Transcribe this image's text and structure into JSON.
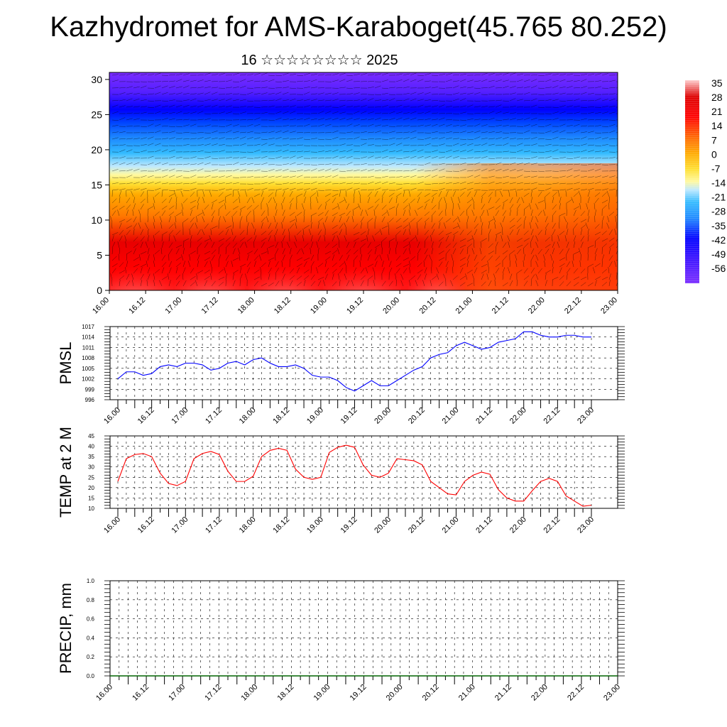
{
  "page": {
    "title": "Kazhydromet for AMS-Karaboget(45.765 80.252)",
    "subtitle": "16 ☆☆☆☆☆☆☆☆ 2025"
  },
  "chart_data": [
    {
      "type": "heatmap",
      "name": "cross-section",
      "description_note": "",
      "x_tick_labels": [
        "16.00",
        "16.12",
        "17.00",
        "17.12",
        "18.00",
        "18.12",
        "19.00",
        "19.12",
        "20.00",
        "20.12",
        "21.00",
        "21.12",
        "22.00",
        "22.12",
        "23.00"
      ],
      "y_ticks": [
        0,
        5,
        10,
        15,
        20,
        25,
        30
      ],
      "ylim": [
        0,
        31
      ],
      "colorbar_labels": [
        "35",
        "28",
        "21",
        "14",
        "7",
        "0",
        "-7",
        "-14",
        "-21",
        "-28",
        "-35",
        "-42",
        "-49",
        "-56"
      ],
      "colorbar_range": [
        -63,
        42
      ],
      "colors": {
        "hot": "#ff0000",
        "warm": "#ffa500",
        "yellow": "#ffff66",
        "cyan": "#33bbff",
        "blue": "#0000ff",
        "violet": "#7a2cff"
      }
    },
    {
      "type": "line",
      "ylabel": "PMSL",
      "color": "#0000ff",
      "y_ticks": [
        996,
        999,
        1002,
        1005,
        1008,
        1011,
        1014,
        1017
      ],
      "ylim": [
        996,
        1017
      ],
      "x_tick_labels": [
        "16.00",
        "16.12",
        "17.00",
        "17.12",
        "18.00",
        "18.12",
        "19.00",
        "19.12",
        "20.00",
        "20.12",
        "21.00",
        "21.12",
        "22.00",
        "22.12",
        "23.00"
      ],
      "x": [
        0,
        3,
        6,
        9,
        12,
        15,
        18,
        21,
        24,
        27,
        30,
        33,
        36,
        39,
        42,
        45,
        48,
        51,
        54,
        57,
        60,
        63,
        66,
        69,
        72,
        75,
        78,
        81,
        84,
        87,
        90,
        93,
        96,
        99,
        102,
        105,
        108,
        111,
        114,
        117,
        120,
        123,
        126,
        129,
        132,
        135,
        138,
        141,
        144,
        147,
        150,
        153,
        156,
        159,
        162,
        165,
        168
      ],
      "values": [
        1002,
        1004,
        1004,
        1003,
        1003.5,
        1005.5,
        1006,
        1005.5,
        1006.5,
        1006.5,
        1006,
        1004.5,
        1005,
        1006.5,
        1007,
        1006,
        1007.5,
        1008,
        1006.5,
        1005.5,
        1005.5,
        1006,
        1005,
        1003,
        1002.5,
        1002.5,
        1001.5,
        999.5,
        998.5,
        1000,
        1001.5,
        1000,
        1000,
        1001.5,
        1003,
        1004.5,
        1005.5,
        1008,
        1009,
        1009.5,
        1011.5,
        1012.5,
        1011.5,
        1010.5,
        1011,
        1012.5,
        1013,
        1013.5,
        1015.5,
        1015.5,
        1014.5,
        1014,
        1014,
        1014.5,
        1014.5,
        1014,
        1014
      ]
    },
    {
      "type": "line",
      "ylabel": "TEMP at 2 M",
      "color": "#ff0000",
      "y_ticks": [
        10,
        15,
        20,
        25,
        30,
        35,
        40,
        45
      ],
      "ylim": [
        10,
        45
      ],
      "x_tick_labels": [
        "16.00",
        "16.12",
        "17.00",
        "17.12",
        "18.00",
        "18.12",
        "19.00",
        "19.12",
        "20.00",
        "20.12",
        "21.00",
        "21.12",
        "22.00",
        "22.12",
        "23.00"
      ],
      "x": [
        0,
        3,
        6,
        9,
        12,
        15,
        18,
        21,
        24,
        27,
        30,
        33,
        36,
        39,
        42,
        45,
        48,
        51,
        54,
        57,
        60,
        63,
        66,
        69,
        72,
        75,
        78,
        81,
        84,
        87,
        90,
        93,
        96,
        99,
        102,
        105,
        108,
        111,
        114,
        117,
        120,
        123,
        126,
        129,
        132,
        135,
        138,
        141,
        144,
        147,
        150,
        153,
        156,
        159,
        162,
        165,
        168
      ],
      "values": [
        23,
        34,
        36,
        36.5,
        35,
        27,
        22,
        21,
        23,
        34,
        36.5,
        37.5,
        36,
        28,
        23,
        23,
        25.5,
        35,
        38,
        39,
        38,
        29,
        25,
        24,
        25,
        37,
        39.5,
        40.5,
        39.5,
        31,
        26,
        25,
        27,
        34,
        33.5,
        33,
        31,
        23,
        20,
        17,
        16.5,
        23,
        26,
        27.5,
        26.5,
        19,
        15,
        13.5,
        13.5,
        18.5,
        23,
        24.5,
        23,
        16,
        13.5,
        11,
        11.5
      ]
    },
    {
      "type": "bar",
      "ylabel": "PRECIP, mm",
      "color": "#006400",
      "y_ticks": [
        "0.0",
        "0.2",
        "0.4",
        "0.6",
        "0.8",
        "1.0"
      ],
      "ylim": [
        0,
        1
      ],
      "x_tick_labels": [
        "16.00",
        "16.12",
        "17.00",
        "17.12",
        "18.00",
        "18.12",
        "19.00",
        "19.12",
        "20.00",
        "20.12",
        "21.00",
        "21.12",
        "22.00",
        "22.12",
        "23.00"
      ],
      "values": [
        0,
        0,
        0,
        0,
        0,
        0,
        0,
        0,
        0,
        0,
        0,
        0,
        0,
        0,
        0,
        0,
        0,
        0,
        0,
        0,
        0,
        0,
        0,
        0,
        0,
        0,
        0,
        0,
        0,
        0,
        0,
        0,
        0,
        0,
        0,
        0,
        0,
        0,
        0,
        0,
        0,
        0,
        0,
        0,
        0,
        0,
        0,
        0,
        0,
        0,
        0,
        0,
        0,
        0,
        0,
        0
      ]
    }
  ]
}
